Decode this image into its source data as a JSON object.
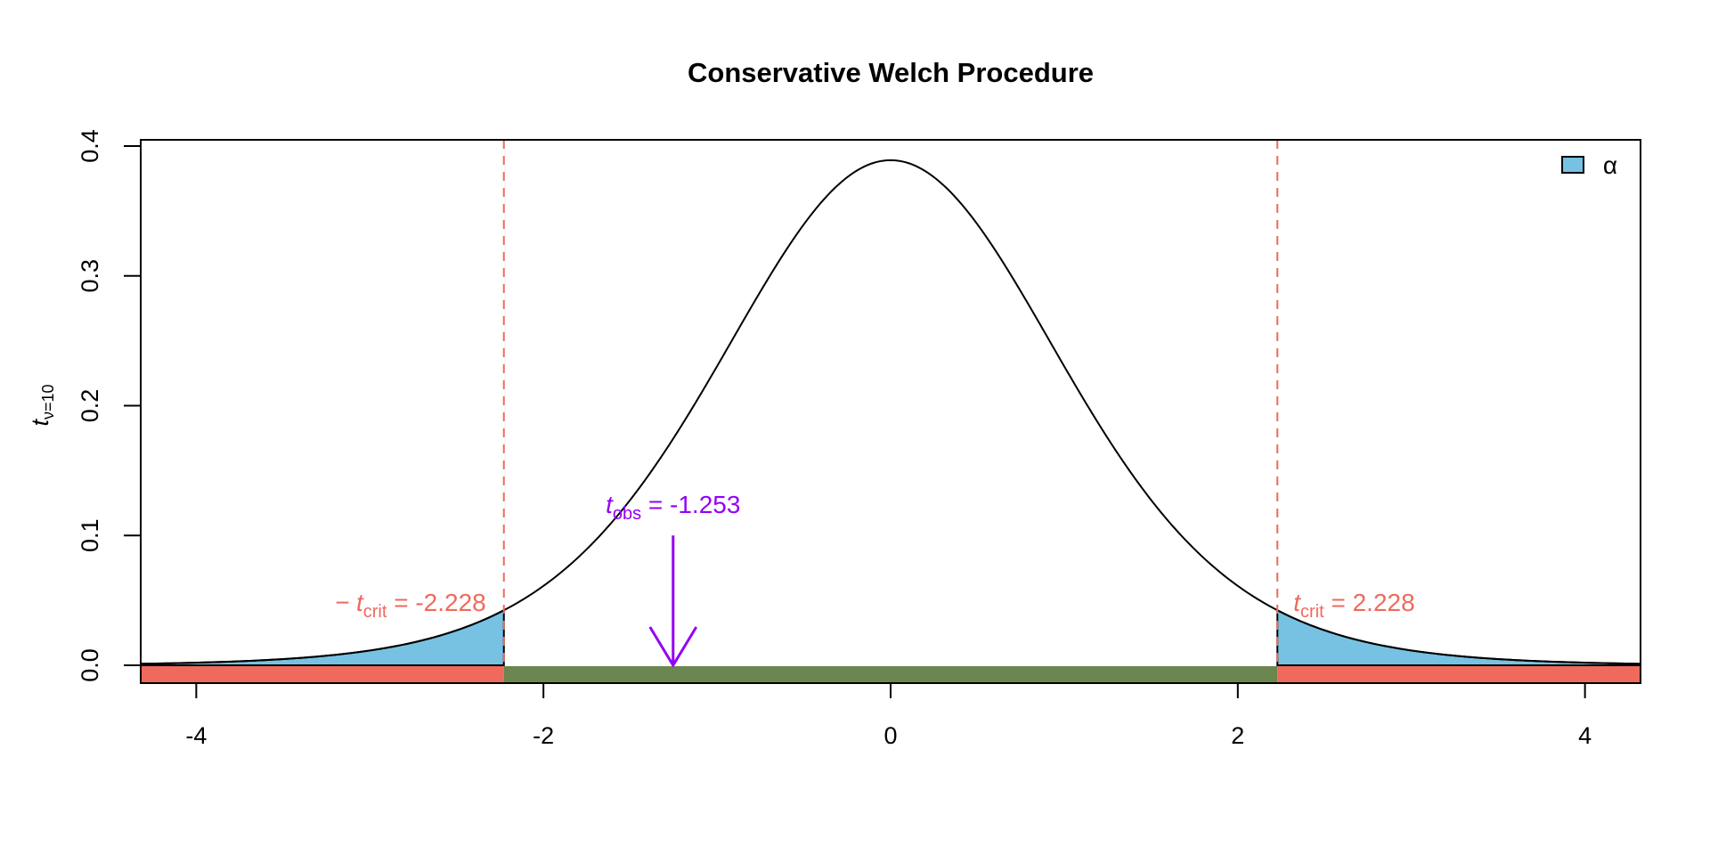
{
  "chart_data": {
    "type": "area",
    "title": "Conservative Welch Procedure",
    "ylabel": {
      "main": "t",
      "subscript": "ν=10"
    },
    "xlabel": "",
    "distribution": {
      "family": "t",
      "df": 10
    },
    "xlim": [
      -4.32,
      4.32
    ],
    "ylim": [
      0,
      0.4
    ],
    "x_ticks": [
      -4,
      -2,
      0,
      2,
      4
    ],
    "x_tick_labels": [
      "-4",
      "-2",
      "0",
      "2",
      "4"
    ],
    "y_ticks": [
      0,
      0.1,
      0.2,
      0.3,
      0.4
    ],
    "y_tick_labels": [
      "0.0",
      "0.1",
      "0.2",
      "0.3",
      "0.4"
    ],
    "t_crit": 2.228,
    "t_obs": -1.253,
    "annotations": {
      "neg_crit": {
        "prefix": "− t",
        "sub": "crit",
        "value": " = -2.228"
      },
      "pos_crit": {
        "prefix": "t",
        "sub": "crit",
        "value": " = 2.228"
      },
      "obs": {
        "prefix": "t",
        "sub": "obs",
        "value": " = -1.253"
      }
    },
    "regions": [
      {
        "name": "rejection-left",
        "from": -4.32,
        "to": -2.228,
        "color": "#EE6A5C"
      },
      {
        "name": "acceptance",
        "from": -2.228,
        "to": 2.228,
        "color": "#6B864F"
      },
      {
        "name": "rejection-right",
        "from": 2.228,
        "to": 4.32,
        "color": "#EE6A5C"
      }
    ],
    "legend": {
      "entries": [
        {
          "label": "α",
          "color": "#77C2E3"
        }
      ],
      "position": "top-right"
    },
    "colors": {
      "alpha_fill": "#77C2E3",
      "crit": "#EE6A5C",
      "obs": "#9400F5",
      "curve": "#000000"
    }
  }
}
